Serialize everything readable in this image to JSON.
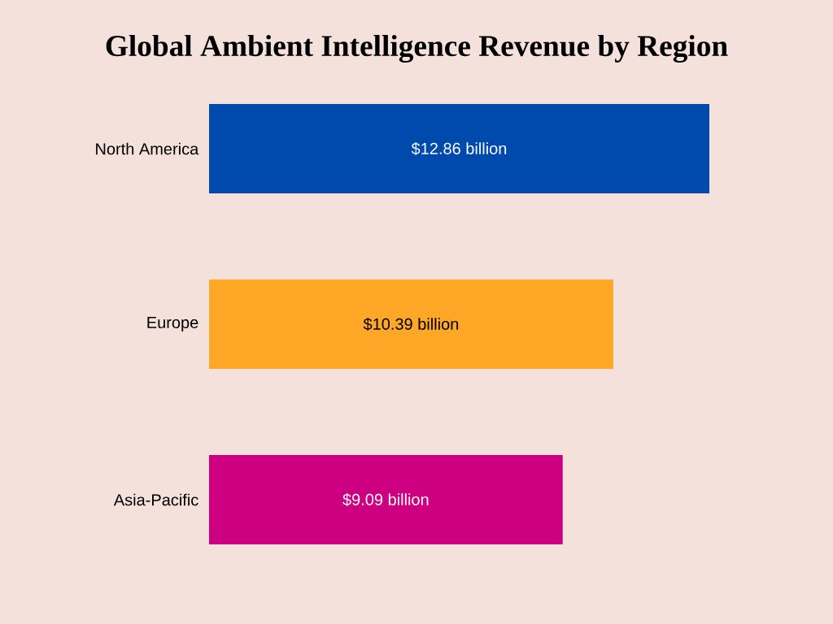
{
  "chart_data": {
    "type": "bar",
    "orientation": "horizontal",
    "title": "Global Ambient Intelligence Revenue by Region",
    "categories": [
      "North America",
      "Europe",
      "Asia-Pacific"
    ],
    "values": [
      12.86,
      10.39,
      9.09
    ],
    "colors": [
      "#004aad",
      "#ffa726",
      "#cc0080"
    ],
    "value_labels": [
      "$12.86 billion",
      "$10.39 billion",
      "$9.09 billion"
    ]
  }
}
